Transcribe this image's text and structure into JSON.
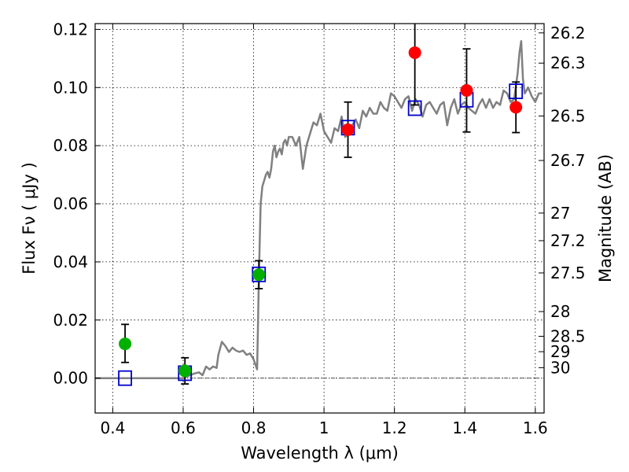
{
  "chart_data": {
    "type": "scatter",
    "xlabel": "Wavelength  λ (μm)",
    "ylabel": "Flux  Fν  ( μJy )",
    "y2label": "Magnitude (AB)",
    "xlim": [
      0.35,
      1.625
    ],
    "ylim": [
      -0.012,
      0.122
    ],
    "grid": true,
    "x_ticks": [
      {
        "value": 0.4,
        "label": "0.4"
      },
      {
        "value": 0.6,
        "label": "0.6"
      },
      {
        "value": 0.8,
        "label": "0.8"
      },
      {
        "value": 1.0,
        "label": "1"
      },
      {
        "value": 1.2,
        "label": "1.2"
      },
      {
        "value": 1.4,
        "label": "1.4"
      },
      {
        "value": 1.6,
        "label": "1.6"
      }
    ],
    "y_ticks": [
      {
        "value": 0.0,
        "label": "0.00"
      },
      {
        "value": 0.02,
        "label": "0.02"
      },
      {
        "value": 0.04,
        "label": "0.04"
      },
      {
        "value": 0.06,
        "label": "0.06"
      },
      {
        "value": 0.08,
        "label": "0.08"
      },
      {
        "value": 0.1,
        "label": "0.10"
      },
      {
        "value": 0.12,
        "label": "0.12"
      }
    ],
    "y2_ticks": [
      {
        "flux": 0.1188,
        "label": "26.2"
      },
      {
        "flux": 0.1084,
        "label": "26.3"
      },
      {
        "flux": 0.0902,
        "label": "26.5"
      },
      {
        "flux": 0.0749,
        "label": "26.7"
      },
      {
        "flux": 0.0568,
        "label": "27"
      },
      {
        "flux": 0.0473,
        "label": "27.2"
      },
      {
        "flux": 0.0362,
        "label": "27.5"
      },
      {
        "flux": 0.0229,
        "label": "28"
      },
      {
        "flux": 0.0144,
        "label": "28.5"
      },
      {
        "flux": 0.0091,
        "label": "29"
      },
      {
        "flux": 0.0036,
        "label": "30"
      }
    ],
    "colors": {
      "model": "#808080",
      "green": "#00b000",
      "red": "#ff0000",
      "square": "#0000cc",
      "errorbar": "#000000",
      "zero_line": "#555555"
    },
    "series": [
      {
        "marker": "line",
        "color": "#808080",
        "x": [
          0.35,
          0.4,
          0.5,
          0.6,
          0.63,
          0.645,
          0.655,
          0.665,
          0.675,
          0.685,
          0.695,
          0.7,
          0.71,
          0.72,
          0.73,
          0.74,
          0.75,
          0.76,
          0.77,
          0.78,
          0.79,
          0.8,
          0.81,
          0.812,
          0.815,
          0.82,
          0.825,
          0.83,
          0.835,
          0.84,
          0.845,
          0.85,
          0.855,
          0.86,
          0.865,
          0.87,
          0.875,
          0.88,
          0.885,
          0.89,
          0.895,
          0.9,
          0.91,
          0.92,
          0.93,
          0.94,
          0.95,
          0.96,
          0.965,
          0.97,
          0.98,
          0.99,
          1.0,
          1.01,
          1.02,
          1.03,
          1.04,
          1.05,
          1.06,
          1.07,
          1.08,
          1.09,
          1.1,
          1.11,
          1.12,
          1.13,
          1.14,
          1.15,
          1.16,
          1.17,
          1.18,
          1.19,
          1.2,
          1.21,
          1.22,
          1.23,
          1.24,
          1.25,
          1.26,
          1.27,
          1.28,
          1.29,
          1.3,
          1.31,
          1.32,
          1.33,
          1.34,
          1.35,
          1.36,
          1.37,
          1.38,
          1.39,
          1.4,
          1.41,
          1.42,
          1.43,
          1.44,
          1.45,
          1.46,
          1.47,
          1.48,
          1.49,
          1.5,
          1.51,
          1.52,
          1.53,
          1.54,
          1.55,
          1.555,
          1.56,
          1.565,
          1.57,
          1.58,
          1.59,
          1.6,
          1.61,
          1.62
        ],
        "y": [
          0.0,
          0.0,
          0.0,
          0.0,
          0.0015,
          0.002,
          0.001,
          0.004,
          0.003,
          0.004,
          0.0035,
          0.008,
          0.0125,
          0.011,
          0.009,
          0.0105,
          0.0095,
          0.009,
          0.0095,
          0.008,
          0.0085,
          0.0065,
          0.003,
          0.015,
          0.034,
          0.06,
          0.066,
          0.068,
          0.07,
          0.071,
          0.069,
          0.072,
          0.078,
          0.08,
          0.076,
          0.078,
          0.079,
          0.077,
          0.081,
          0.082,
          0.08,
          0.083,
          0.083,
          0.08,
          0.083,
          0.072,
          0.08,
          0.084,
          0.086,
          0.088,
          0.087,
          0.091,
          0.085,
          0.083,
          0.081,
          0.086,
          0.085,
          0.09,
          0.083,
          0.084,
          0.087,
          0.089,
          0.086,
          0.092,
          0.09,
          0.093,
          0.091,
          0.091,
          0.095,
          0.093,
          0.092,
          0.098,
          0.097,
          0.095,
          0.093,
          0.096,
          0.097,
          0.092,
          0.096,
          0.094,
          0.09,
          0.094,
          0.095,
          0.093,
          0.091,
          0.094,
          0.095,
          0.087,
          0.093,
          0.096,
          0.091,
          0.094,
          0.095,
          0.093,
          0.092,
          0.091,
          0.094,
          0.096,
          0.093,
          0.096,
          0.093,
          0.095,
          0.094,
          0.099,
          0.098,
          0.095,
          0.096,
          0.105,
          0.112,
          0.116,
          0.103,
          0.098,
          0.1,
          0.097,
          0.095,
          0.098,
          0.098
        ]
      },
      {
        "marker": "square",
        "color": "#0000cc",
        "x": [
          0.435,
          0.605,
          0.815,
          1.068,
          1.258,
          1.405,
          1.545
        ],
        "y": [
          0.0,
          0.0017,
          0.0357,
          0.0862,
          0.0929,
          0.0958,
          0.0987
        ]
      },
      {
        "marker": "circle",
        "color": "#00b000",
        "x": [
          0.435,
          0.605,
          0.815
        ],
        "y": [
          0.0118,
          0.0025,
          0.0356
        ],
        "err_low": [
          0.0064,
          0.0045,
          0.0048
        ],
        "err_high": [
          0.0067,
          0.0045,
          0.0048
        ]
      },
      {
        "marker": "circle",
        "color": "#ff0000",
        "x": [
          1.068,
          1.258,
          1.405,
          1.545
        ],
        "y": [
          0.0855,
          0.112,
          0.099,
          0.0932
        ],
        "err_low": [
          0.0095,
          0.018,
          0.0143,
          0.0087
        ],
        "err_high": [
          0.0095,
          0.018,
          0.0143,
          0.0087
        ]
      }
    ]
  }
}
